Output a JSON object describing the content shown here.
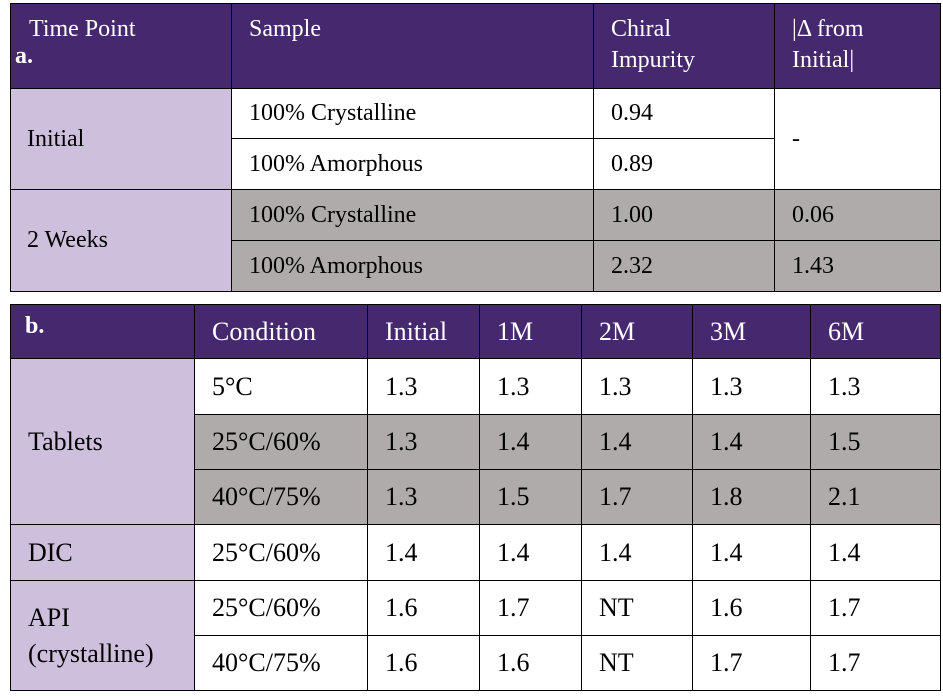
{
  "table_a": {
    "label": "a.",
    "headers": [
      "Time Point",
      "Sample",
      "Chiral Impurity",
      "|Δ from Initial|"
    ],
    "headers_lines": [
      [
        "Time Point"
      ],
      [
        "Sample"
      ],
      [
        "Chiral",
        "Impurity"
      ],
      [
        "|Δ from",
        "Initial|"
      ]
    ],
    "groups": [
      {
        "time_point": "Initial",
        "rows": [
          {
            "sample": "100% Crystalline",
            "impurity": "0.94"
          },
          {
            "sample": "100% Amorphous",
            "impurity": "0.89"
          }
        ],
        "delta": "-"
      },
      {
        "time_point": "2 Weeks",
        "rows": [
          {
            "sample": "100% Crystalline",
            "impurity": "1.00",
            "delta": "0.06"
          },
          {
            "sample": "100% Amorphous",
            "impurity": "2.32",
            "delta": "1.43"
          }
        ]
      }
    ]
  },
  "table_b": {
    "label": "b.",
    "headers": [
      "Condition",
      "Initial",
      "1M",
      "2M",
      "3M",
      "6M"
    ],
    "groups": [
      {
        "name": "Tablets",
        "rows": [
          {
            "condition": "5°C",
            "values": [
              "1.3",
              "1.3",
              "1.3",
              "1.3",
              "1.3"
            ]
          },
          {
            "condition": "25°C/60%",
            "values": [
              "1.3",
              "1.4",
              "1.4",
              "1.4",
              "1.5"
            ]
          },
          {
            "condition": "40°C/75%",
            "values": [
              "1.3",
              "1.5",
              "1.7",
              "1.8",
              "2.1"
            ]
          }
        ]
      },
      {
        "name": "DIC",
        "rows": [
          {
            "condition": "25°C/60%",
            "values": [
              "1.4",
              "1.4",
              "1.4",
              "1.4",
              "1.4"
            ]
          }
        ]
      },
      {
        "name_lines": [
          "API",
          "(crystalline)"
        ],
        "rows": [
          {
            "condition": "25°C/60%",
            "values": [
              "1.6",
              "1.7",
              "NT",
              "1.6",
              "1.7"
            ]
          },
          {
            "condition": "40°C/75%",
            "values": [
              "1.6",
              "1.6",
              "NT",
              "1.7",
              "1.7"
            ]
          }
        ]
      }
    ]
  },
  "colors": {
    "header_bg": "#46286e",
    "header_text": "#ffffff",
    "group_bg": "#cebfdc",
    "shaded_row_bg": "#afabab",
    "plain_row_bg": "#ffffff"
  }
}
